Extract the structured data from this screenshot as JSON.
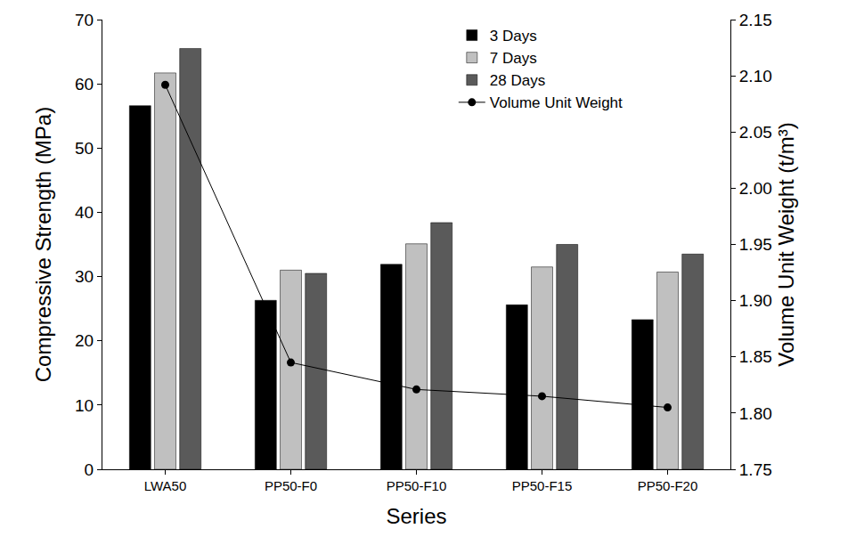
{
  "chart_data": {
    "type": "bar",
    "x_label": "Series",
    "y_label": "Compressive Strength (MPa)",
    "y2_label": "Volume Unit Weight (t/m³)",
    "categories": [
      "LWA50",
      "PP50-F0",
      "PP50-F10",
      "PP50-F15",
      "PP50-F20"
    ],
    "series": [
      {
        "name": "3 Days",
        "type": "bar",
        "color": "#000000",
        "values": [
          56.6,
          26.3,
          31.9,
          25.6,
          23.3
        ]
      },
      {
        "name": "7 Days",
        "type": "bar",
        "color": "#c0c0c0",
        "values": [
          61.7,
          31.0,
          35.1,
          31.5,
          30.7
        ]
      },
      {
        "name": "28 Days",
        "type": "bar",
        "color": "#5a5a5a",
        "values": [
          65.5,
          30.5,
          38.4,
          35.0,
          33.5
        ]
      },
      {
        "name": "Volume Unit Weight",
        "type": "line",
        "axis": "y2",
        "color": "#000000",
        "marker": "circle",
        "line_style": "solid",
        "values": [
          2.092,
          1.845,
          1.821,
          1.815,
          1.805
        ]
      }
    ],
    "ylim": [
      0,
      70
    ],
    "yticks": [
      0,
      10,
      20,
      30,
      40,
      50,
      60,
      70
    ],
    "y2lim": [
      1.75,
      2.15
    ],
    "y2ticks": [
      1.75,
      {
        "value": 1.8,
        "label": "1.80"
      },
      1.85,
      {
        "value": 1.9,
        "label": "1.90"
      },
      1.95,
      {
        "value": 2,
        "label": "2.00"
      },
      2.05,
      {
        "value": 2.1,
        "label": "2.10"
      },
      2.15
    ],
    "grid": false,
    "legend": "upper right"
  }
}
